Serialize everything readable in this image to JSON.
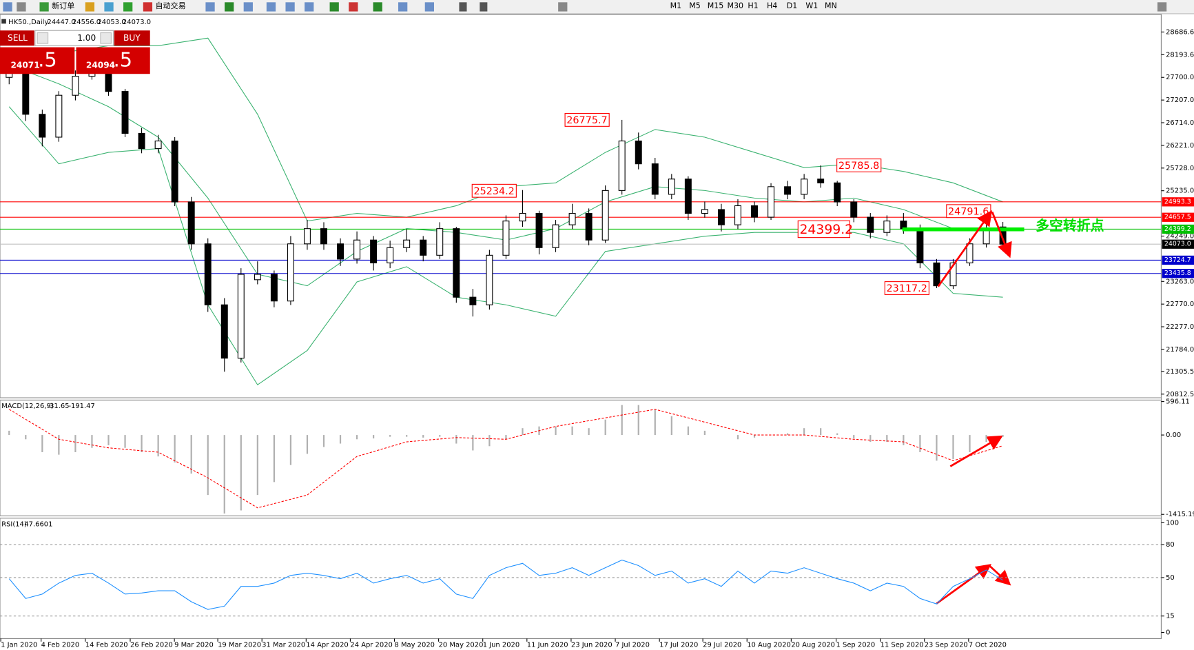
{
  "toolbar": {
    "new_order": "新订单",
    "auto_trading": "自动交易",
    "timeframes": [
      "M1",
      "M5",
      "M15",
      "M30",
      "H1",
      "H4",
      "D1",
      "W1",
      "MN"
    ]
  },
  "trade_panel": {
    "sell": "SELL",
    "buy": "BUY",
    "lot": "1.00",
    "sell_price": "24071",
    "sell_pips": ".5",
    "buy_price": "24094",
    "buy_pips": ".5"
  },
  "chart_data": [
    {
      "type": "candlestick",
      "title": "HK50.,Daily",
      "ohlc_header": [
        "24447.0",
        "24556.0",
        "24053.0",
        "24073.0"
      ],
      "ylim": [
        20733,
        29051
      ],
      "yticks": [
        28686.6,
        28193.6,
        {
          "value": 27700,
          "label": "27700.0"
        },
        {
          "value": 27207,
          "label": "27207.0"
        },
        {
          "value": 26714,
          "label": "26714.0"
        },
        {
          "value": 26221,
          "label": "26221.0"
        },
        {
          "value": 25728,
          "label": "25728.0"
        },
        {
          "value": 25235,
          "label": "25235.0"
        },
        {
          "value": 24249,
          "label": "24249.0"
        },
        {
          "value": 23263,
          "label": "23263.0"
        },
        {
          "value": 22770,
          "label": "22770.0"
        },
        {
          "value": 22277,
          "label": "22277.0"
        },
        {
          "value": 21784,
          "label": "21784.0"
        },
        21305.5,
        20812.5
      ],
      "candles": [
        [
          27700,
          28000,
          27550,
          27808
        ],
        [
          27808,
          27900,
          26750,
          26897
        ],
        [
          26897,
          27000,
          26200,
          26400
        ],
        [
          26400,
          27400,
          26300,
          27311
        ],
        [
          27311,
          27850,
          27200,
          27725
        ],
        [
          27725,
          28000,
          27650,
          27808
        ],
        [
          27808,
          27900,
          27300,
          27394
        ],
        [
          27394,
          27450,
          26400,
          26483
        ],
        [
          26483,
          26600,
          26050,
          26151
        ],
        [
          26151,
          26450,
          26050,
          26317
        ],
        [
          26317,
          26400,
          24900,
          24991
        ],
        [
          24991,
          25100,
          23950,
          24080
        ],
        [
          24080,
          24200,
          22600,
          22754
        ],
        [
          22754,
          22900,
          21300,
          21594
        ],
        [
          21594,
          23550,
          21500,
          23417
        ],
        [
          23300,
          23700,
          23200,
          23417
        ],
        [
          23417,
          23500,
          22700,
          22837
        ],
        [
          22837,
          24250,
          22750,
          24080
        ],
        [
          24080,
          24600,
          23950,
          24411
        ],
        [
          24411,
          24550,
          23950,
          24080
        ],
        [
          24080,
          24200,
          23600,
          23749
        ],
        [
          23749,
          24350,
          23650,
          24163
        ],
        [
          24163,
          24250,
          23500,
          23666
        ],
        [
          23666,
          24150,
          23550,
          23998
        ],
        [
          23998,
          24400,
          23900,
          24163
        ],
        [
          24163,
          24250,
          23700,
          23832
        ],
        [
          23832,
          24550,
          23750,
          24411
        ],
        [
          24411,
          24450,
          22800,
          22920
        ],
        [
          22920,
          23100,
          22500,
          22754
        ],
        [
          22754,
          23950,
          22650,
          23832
        ],
        [
          23832,
          24700,
          23750,
          24577
        ],
        [
          24577,
          25250,
          24450,
          24743
        ],
        [
          24743,
          24800,
          23850,
          23998
        ],
        [
          23998,
          24600,
          23900,
          24494
        ],
        [
          24494,
          24950,
          24400,
          24743
        ],
        [
          24743,
          24850,
          24050,
          24163
        ],
        [
          24163,
          25350,
          24100,
          25240
        ],
        [
          25240,
          26775.7,
          25150,
          26317
        ],
        [
          26317,
          26500,
          25700,
          25820
        ],
        [
          25820,
          25950,
          25050,
          25157
        ],
        [
          25157,
          25600,
          25050,
          25489
        ],
        [
          25489,
          25550,
          24600,
          24743
        ],
        [
          24743,
          25000,
          24650,
          24826
        ],
        [
          24826,
          24950,
          24350,
          24494
        ],
        [
          24494,
          25050,
          24400,
          24909
        ],
        [
          24909,
          25000,
          24550,
          24660
        ],
        [
          24660,
          25400,
          24600,
          25323
        ],
        [
          25323,
          25450,
          25050,
          25157
        ],
        [
          25157,
          25600,
          25050,
          25489
        ],
        [
          25489,
          25785.8,
          25300,
          25406
        ],
        [
          25406,
          25450,
          24900,
          24991
        ],
        [
          24991,
          25050,
          24550,
          24660
        ],
        [
          24660,
          24750,
          24200,
          24328
        ],
        [
          24328,
          24700,
          24250,
          24577
        ],
        [
          24577,
          24750,
          24300,
          24411
        ],
        [
          24411,
          24500,
          23550,
          23666
        ],
        [
          23666,
          23750,
          23117.2,
          23168
        ],
        [
          23168,
          23750,
          23100,
          23666
        ],
        [
          23666,
          24200,
          23600,
          24080
        ],
        [
          24080,
          24791.6,
          24000,
          24411
        ],
        [
          24447,
          24556,
          24053,
          24073
        ]
      ],
      "bands": {
        "color": "#3cb371",
        "upper": [
          28140,
          28223,
          28388,
          28388,
          28554,
          26897,
          24577,
          24743,
          24660,
          24909,
          25323,
          25406,
          26069,
          26566,
          26400,
          26069,
          25738,
          25820,
          25655,
          25406,
          24992
        ],
        "middle": [
          27974,
          27560,
          27063,
          26400,
          25075,
          23418,
          23169,
          23915,
          24412,
          24329,
          24163,
          24412,
          24992,
          25323,
          25240,
          25075,
          24992,
          25075,
          24826,
          24412,
          24412
        ],
        "lower": [
          27063,
          25820,
          26069,
          26152,
          22754,
          21015,
          21761,
          23252,
          23583,
          22920,
          22754,
          22506,
          23915,
          24080,
          24246,
          24329,
          24329,
          24329,
          24080,
          23003,
          22920
        ]
      },
      "levels": [
        {
          "value": 24993.3,
          "color": "#ff0000"
        },
        {
          "value": 24657.5,
          "color": "#ff0000"
        },
        {
          "value": 24399.2,
          "color": "#00c000"
        },
        {
          "value": 23724.7,
          "color": "#0000cc"
        },
        {
          "value": 23435.8,
          "color": "#0000cc"
        }
      ],
      "current": {
        "value": 24073,
        "label": "24073.0"
      },
      "annotations": [
        26775.7,
        25234.2,
        25785.8,
        24791.6,
        24399.2,
        23117.2
      ],
      "note": "多空转折点",
      "x_labels": [
        "1 Jan 2020",
        "4 Feb 2020",
        "14 Feb 2020",
        "26 Feb 2020",
        "9 Mar 2020",
        "19 Mar 2020",
        "31 Mar 2020",
        "14 Apr 2020",
        "24 Apr 2020",
        "8 May 2020",
        "20 May 2020",
        "1 Jun 2020",
        "11 Jun 2020",
        "23 Jun 2020",
        "7 Jul 2020",
        "17 Jul 2020",
        "29 Jul 2020",
        "10 Aug 2020",
        "20 Aug 2020",
        "1 Sep 2020",
        "11 Sep 2020",
        "23 Sep 2020",
        "7 Oct 2020"
      ]
    },
    {
      "type": "macd",
      "title": "MACD(12,26,9)",
      "ylim": [
        -1415.19,
        596.11
      ],
      "yticks": [
        596.11,
        {
          "value": 0,
          "label": "0.00"
        },
        -1415.19
      ],
      "histogram_color": "#b0b0b0",
      "signal_color": "#ff0000",
      "histogram": [
        76,
        -76,
        -306,
        -351,
        -306,
        -229,
        -183,
        -229,
        -306,
        -382,
        -489,
        -688,
        -1070,
        -1400,
        -1345,
        -1070,
        -840,
        -535,
        -336,
        -214,
        -153,
        -76,
        -61,
        -31,
        -31,
        -46,
        -31,
        -153,
        -275,
        -199,
        -76,
        122,
        153,
        153,
        153,
        122,
        275,
        535,
        535,
        458,
        336,
        153,
        76,
        0,
        -76,
        -46,
        0,
        31,
        122,
        122,
        31,
        -61,
        -122,
        -122,
        -183,
        -306,
        -458,
        -428,
        -306,
        -122,
        -31.65
      ],
      "signal": [
        458,
        -76,
        -229,
        -306,
        -764,
        -1299,
        -1070,
        -382,
        -122,
        -46,
        -76,
        153,
        306,
        458,
        229,
        0,
        0,
        -76,
        -122,
        -458,
        -191.47
      ]
    },
    {
      "type": "line",
      "title": "RSI(14)",
      "ylim": [
        0,
        100
      ],
      "yticks": [
        0,
        15,
        50,
        80,
        100
      ],
      "color": "#1e90ff",
      "values": [
        49,
        31,
        35,
        45,
        52,
        54,
        45,
        35,
        36,
        38,
        38,
        28,
        21,
        24,
        42,
        42,
        45,
        52,
        54,
        52,
        49,
        54,
        45,
        49,
        52,
        45,
        49,
        35,
        31,
        52,
        59,
        63,
        52,
        54,
        59,
        52,
        59,
        66,
        61,
        52,
        56,
        45,
        49,
        42,
        56,
        45,
        56,
        54,
        59,
        54,
        49,
        45,
        38,
        45,
        42,
        31,
        26,
        42,
        49,
        57,
        47.6601
      ]
    }
  ]
}
